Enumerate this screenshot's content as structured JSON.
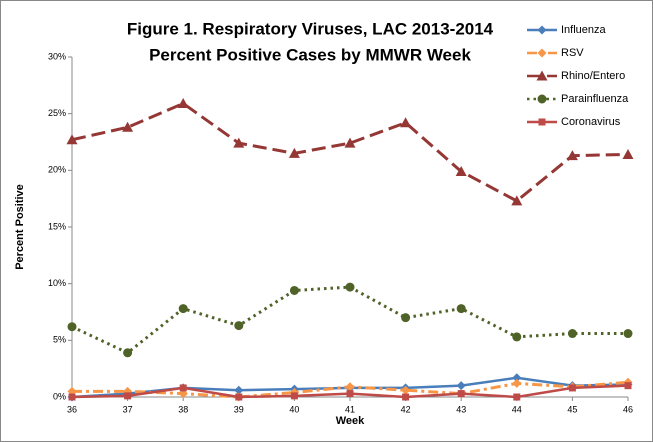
{
  "chart_data": {
    "type": "line",
    "title": [
      "Figure 1. Respiratory Viruses, LAC 2013-2014",
      "Percent Positive Cases by MMWR Week"
    ],
    "x_label": "Week",
    "y_label": "Percent Positive",
    "x": [
      36,
      37,
      38,
      39,
      40,
      41,
      42,
      43,
      44,
      45,
      46
    ],
    "xlim": [
      36,
      46
    ],
    "xticks": [
      36,
      37,
      38,
      39,
      40,
      41,
      42,
      43,
      44,
      45,
      46
    ],
    "ylim": [
      0,
      30
    ],
    "yticks": [
      {
        "value": 0,
        "label": "0%"
      },
      {
        "value": 5,
        "label": "5%"
      },
      {
        "value": 10,
        "label": "10%"
      },
      {
        "value": 15,
        "label": "15%"
      },
      {
        "value": 20,
        "label": "20%"
      },
      {
        "value": 25,
        "label": "25%"
      },
      {
        "value": 30,
        "label": "30%"
      }
    ],
    "legend": "top-right",
    "series": [
      {
        "name": "Influenza",
        "color": "#4a7ebb",
        "line_style": "solid",
        "marker": "diamond",
        "values": [
          0.0,
          0.3,
          0.8,
          0.6,
          0.7,
          0.8,
          0.8,
          1.0,
          1.7,
          1.0,
          1.1
        ]
      },
      {
        "name": "RSV",
        "color": "#f79646",
        "line_style": "dashdot",
        "marker": "diamond",
        "values": [
          0.5,
          0.5,
          0.3,
          0.0,
          0.4,
          0.9,
          0.6,
          0.3,
          1.2,
          0.9,
          1.3
        ]
      },
      {
        "name": "Rhino/Entero",
        "color": "#953735",
        "line_style": "dashed",
        "marker": "triangle",
        "values": [
          22.7,
          23.8,
          25.9,
          22.4,
          21.5,
          22.4,
          24.2,
          19.9,
          17.3,
          21.3,
          21.4
        ]
      },
      {
        "name": "Parainfluenza",
        "color": "#4f6228",
        "line_style": "dotted",
        "marker": "circle",
        "values": [
          6.2,
          3.9,
          7.8,
          6.3,
          9.4,
          9.7,
          7.0,
          7.8,
          5.3,
          5.6,
          5.6
        ]
      },
      {
        "name": "Coronavirus",
        "color": "#be4b48",
        "line_style": "solid",
        "marker": "square",
        "values": [
          0.0,
          0.1,
          0.8,
          0.0,
          0.1,
          0.3,
          0.0,
          0.3,
          0.0,
          0.8,
          1.0
        ]
      }
    ]
  }
}
